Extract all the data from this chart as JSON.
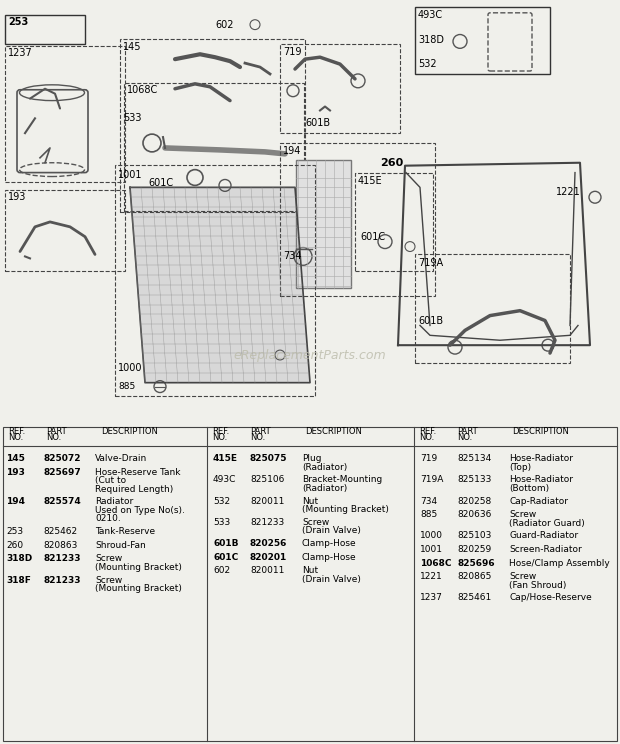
{
  "bg_color": "#f0f0eb",
  "watermark": "eReplacementParts.com",
  "parts_table": {
    "col1": [
      {
        "ref": "145",
        "part": "825072",
        "desc": "Valve-Drain",
        "bold": true
      },
      {
        "ref": "193",
        "part": "825697",
        "desc": "Hose-Reserve Tank\n(Cut to\nRequired Length)",
        "bold": true
      },
      {
        "ref": "194",
        "part": "825574",
        "desc": "Radiator\nUsed on Type No(s).\n0210.",
        "bold": true
      },
      {
        "ref": "253",
        "part": "825462",
        "desc": "Tank-Reserve",
        "bold": false
      },
      {
        "ref": "260",
        "part": "820863",
        "desc": "Shroud-Fan",
        "bold": false
      },
      {
        "ref": "318D",
        "part": "821233",
        "desc": "Screw\n(Mounting Bracket)",
        "bold": true
      },
      {
        "ref": "318F",
        "part": "821233",
        "desc": "Screw\n(Mounting Bracket)",
        "bold": true
      }
    ],
    "col2": [
      {
        "ref": "415E",
        "part": "825075",
        "desc": "Plug\n(Radiator)",
        "bold": true
      },
      {
        "ref": "493C",
        "part": "825106",
        "desc": "Bracket-Mounting\n(Radiator)",
        "bold": false
      },
      {
        "ref": "532",
        "part": "820011",
        "desc": "Nut\n(Mounting Bracket)",
        "bold": false
      },
      {
        "ref": "533",
        "part": "821233",
        "desc": "Screw\n(Drain Valve)",
        "bold": false
      },
      {
        "ref": "601B",
        "part": "820256",
        "desc": "Clamp-Hose",
        "bold": true
      },
      {
        "ref": "601C",
        "part": "820201",
        "desc": "Clamp-Hose",
        "bold": true
      },
      {
        "ref": "602",
        "part": "820011",
        "desc": "Nut\n(Drain Valve)",
        "bold": false
      }
    ],
    "col3": [
      {
        "ref": "719",
        "part": "825134",
        "desc": "Hose-Radiator\n(Top)",
        "bold": false
      },
      {
        "ref": "719A",
        "part": "825133",
        "desc": "Hose-Radiator\n(Bottom)",
        "bold": false
      },
      {
        "ref": "734",
        "part": "820258",
        "desc": "Cap-Radiator",
        "bold": false
      },
      {
        "ref": "885",
        "part": "820636",
        "desc": "Screw\n(Radiator Guard)",
        "bold": false
      },
      {
        "ref": "1000",
        "part": "825103",
        "desc": "Guard-Radiator",
        "bold": false
      },
      {
        "ref": "1001",
        "part": "820259",
        "desc": "Screen-Radiator",
        "bold": false
      },
      {
        "ref": "1068C",
        "part": "825696",
        "desc": "Hose/Clamp Assembly",
        "bold": true
      },
      {
        "ref": "1221",
        "part": "820865",
        "desc": "Screw\n(Fan Shroud)",
        "bold": false
      },
      {
        "ref": "1237",
        "part": "825461",
        "desc": "Cap/Hose-Reserve",
        "bold": false
      }
    ]
  }
}
